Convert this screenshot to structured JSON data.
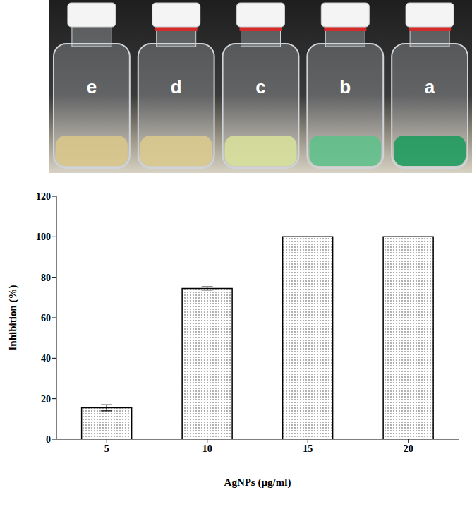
{
  "chart_data": {
    "type": "bar",
    "categories": [
      "5",
      "10",
      "15",
      "20"
    ],
    "values": [
      15.5,
      74.5,
      100,
      100
    ],
    "error": [
      1.5,
      0.8,
      0,
      0
    ],
    "color": "#8c8c8c",
    "x_label": "AgNPs (µg/ml)",
    "y_label": "Inhibition (%)",
    "ylim": [
      0,
      120
    ],
    "yticks": [
      0,
      20,
      40,
      60,
      80,
      100,
      120
    ],
    "grid": false
  },
  "photo": {
    "bottle_labels": [
      "e",
      "d",
      "c",
      "b",
      "a"
    ]
  }
}
